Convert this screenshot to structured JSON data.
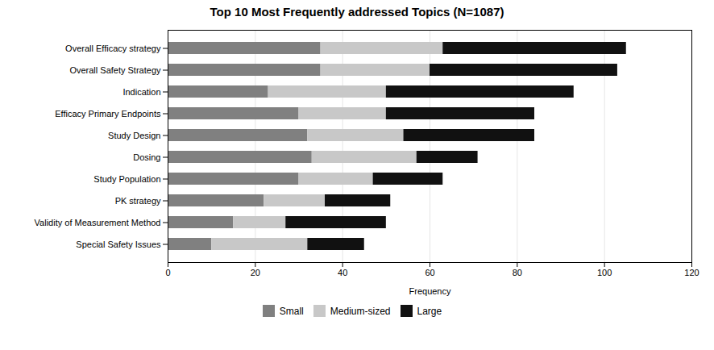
{
  "chart_data": {
    "type": "bar",
    "orientation": "horizontal",
    "stacked": true,
    "title": "Top 10 Most Frequently addressed Topics (N=1087)",
    "xlabel": "Frequency",
    "categories": [
      "Overall Efficacy strategy",
      "Overall Safety Strategy",
      "Indication",
      "Efficacy Primary Endpoints",
      "Study Design",
      "Dosing",
      "Study Population",
      "PK strategy",
      "Validity of Measurement Method",
      "Special Safety Issues"
    ],
    "series": [
      {
        "name": "Small",
        "color": "#808080",
        "values": [
          35,
          35,
          23,
          30,
          32,
          33,
          30,
          22,
          15,
          10
        ]
      },
      {
        "name": "Medium-sized",
        "color": "#c8c8c8",
        "values": [
          28,
          25,
          27,
          20,
          22,
          24,
          17,
          14,
          12,
          22
        ]
      },
      {
        "name": "Large",
        "color": "#111111",
        "values": [
          42,
          43,
          43,
          34,
          30,
          14,
          16,
          15,
          23,
          13
        ]
      }
    ],
    "xlim": [
      0,
      120
    ],
    "xticks": [
      0,
      20,
      40,
      60,
      80,
      100,
      120
    ],
    "grid": true,
    "legend": "bottom"
  }
}
